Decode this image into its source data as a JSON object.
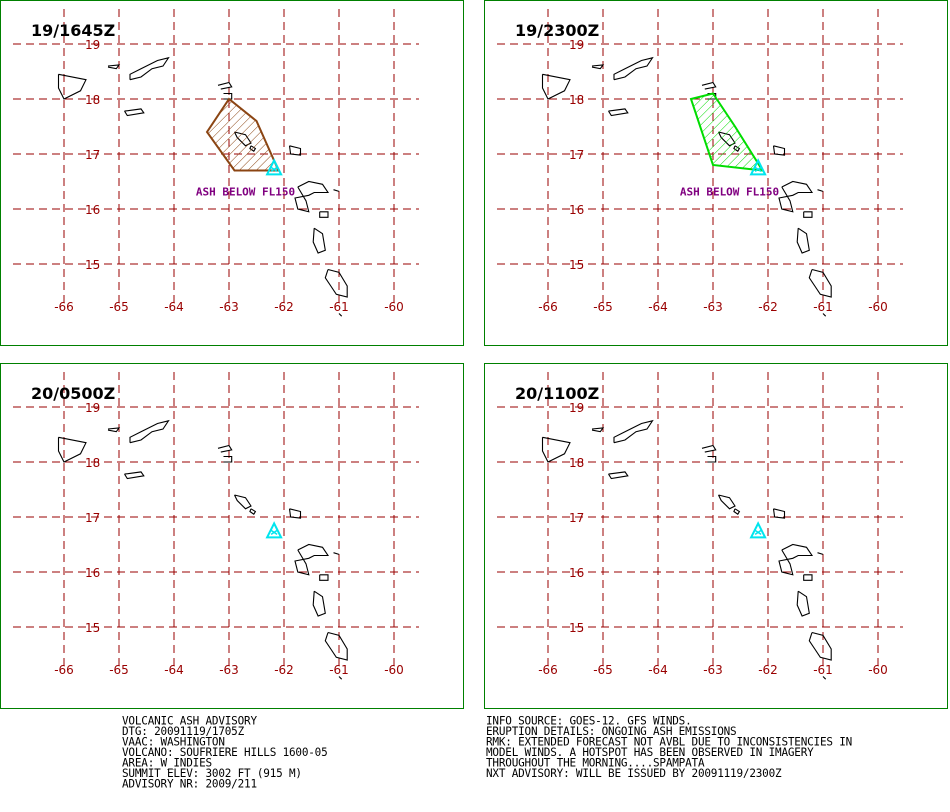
{
  "panels": [
    {
      "time_label": "19/1645Z",
      "ash_label": "ASH BELOW FL150",
      "ash_color": "#8B4513",
      "ash_polygon": [
        [
          -62.1,
          16.7
        ],
        [
          -62.9,
          16.7
        ],
        [
          -63.4,
          17.4
        ],
        [
          -63.0,
          18.0
        ],
        [
          -62.5,
          17.6
        ]
      ]
    },
    {
      "time_label": "19/2300Z",
      "ash_label": "ASH  BELOW  FL150",
      "ash_color": "#00DD00",
      "ash_polygon": [
        [
          -62.1,
          16.7
        ],
        [
          -63.0,
          16.8
        ],
        [
          -63.4,
          18.0
        ],
        [
          -63.0,
          18.1
        ],
        [
          -62.6,
          17.5
        ]
      ]
    },
    {
      "time_label": "20/0500Z"
    },
    {
      "time_label": "20/1100Z"
    }
  ],
  "map": {
    "lon_ticks": [
      "-66",
      "-65",
      "-64",
      "-63",
      "-62",
      "-61",
      "-60"
    ],
    "lat_ticks": [
      "19",
      "18",
      "17",
      "16",
      "15"
    ],
    "grid_color": "#990000",
    "volcano_color": "#00E5EE",
    "volcano": [
      -62.18,
      16.72
    ]
  },
  "advisory_left": [
    "VOLCANIC ASH ADVISORY",
    "DTG: 20091119/1705Z",
    "VAAC: WASHINGTON",
    "VOLCANO: SOUFRIERE HILLS 1600-05",
    "AREA: W_INDIES",
    "SUMMIT ELEV: 3002 FT (915 M)",
    "ADVISORY NR: 2009/211"
  ],
  "advisory_right": [
    "INFO SOURCE: GOES-12. GFS WINDS.",
    "ERUPTION DETAILS: ONGOING ASH EMISSIONS",
    "RMK: EXTENDED FORECAST NOT AVBL DUE TO INCONSISTENCIES IN",
    "MODEL WINDS. A HOTSPOT HAS BEEN OBSERVED IN IMAGERY",
    "THROUGHOUT THE MORNING....SPAMPATA",
    "NXT ADVISORY: WILL BE ISSUED BY 20091119/2300Z"
  ]
}
